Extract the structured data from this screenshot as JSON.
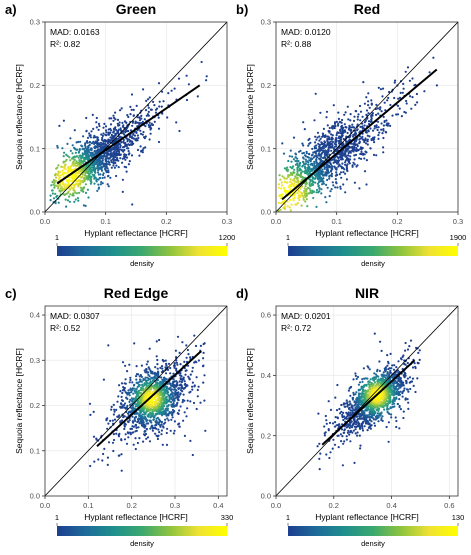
{
  "figure": {
    "colorbar_label": "density",
    "fit_color": "#000000",
    "identity_color": "#000000",
    "point_color": "#1f5f99",
    "colormap": [
      "#1d3f8f",
      "#1e6b9a",
      "#1f8f8c",
      "#3ba86f",
      "#8fc43e",
      "#f0e233",
      "#ffff00"
    ]
  },
  "chart_data": [
    {
      "type": "scatter",
      "panel_letter": "a)",
      "title": "Green",
      "xlabel": "Hyplant reflectance [HCRF]",
      "ylabel": "Sequoia reflectance [HCRF]",
      "xlim": [
        0.0,
        0.3
      ],
      "ylim": [
        0.0,
        0.3
      ],
      "xticks": [
        "0.0",
        "0.1",
        "0.2",
        "0.3"
      ],
      "yticks": [
        "0.0",
        "0.1",
        "0.2",
        "0.3"
      ],
      "xtick_values": [
        0.0,
        0.1,
        0.2,
        0.3
      ],
      "ytick_values": [
        0.0,
        0.1,
        0.2,
        0.3
      ],
      "stats": [
        "MAD: 0.0163",
        "R²: 0.82"
      ],
      "fit_line": {
        "x": [
          0.02,
          0.255
        ],
        "y": [
          0.045,
          0.2
        ]
      },
      "identity_line": true,
      "cloud": {
        "center": [
          0.085,
          0.085
        ],
        "direction": [
          1.0,
          0.72
        ],
        "spread_along": 0.045,
        "spread_across": 0.015,
        "range_along": [
          0.01,
          0.28
        ],
        "hotspot": [
          0.04,
          0.055
        ]
      },
      "colorbar": {
        "min": "1",
        "max": "1200"
      },
      "grid": true
    },
    {
      "type": "scatter",
      "panel_letter": "b)",
      "title": "Red",
      "xlabel": "Hyplant reflectance [HCRF]",
      "ylabel": "Sequoia reflectance [HCRF]",
      "xlim": [
        0.0,
        0.3
      ],
      "ylim": [
        0.0,
        0.3
      ],
      "xticks": [
        "0.0",
        "0.1",
        "0.2",
        "0.3"
      ],
      "yticks": [
        "0.0",
        "0.1",
        "0.2",
        "0.3"
      ],
      "xtick_values": [
        0.0,
        0.1,
        0.2,
        0.3
      ],
      "ytick_values": [
        0.0,
        0.1,
        0.2,
        0.3
      ],
      "stats": [
        "MAD: 0.0120",
        "R²: 0.88"
      ],
      "fit_line": {
        "x": [
          0.01,
          0.265
        ],
        "y": [
          0.02,
          0.225
        ]
      },
      "identity_line": true,
      "cloud": {
        "center": [
          0.08,
          0.08
        ],
        "direction": [
          1.0,
          0.82
        ],
        "spread_along": 0.055,
        "spread_across": 0.018,
        "range_along": [
          0.005,
          0.28
        ],
        "hotspot": [
          0.02,
          0.028
        ]
      },
      "colorbar": {
        "min": "1",
        "max": "1900"
      },
      "grid": true
    },
    {
      "type": "scatter",
      "panel_letter": "c)",
      "title": "Red Edge",
      "xlabel": "Hyplant reflectance [HCRF]",
      "ylabel": "Sequoia reflectance [HCRF]",
      "xlim": [
        0.0,
        0.42
      ],
      "ylim": [
        0.0,
        0.42
      ],
      "xticks": [
        "0.0",
        "0.1",
        "0.2",
        "0.3",
        "0.4"
      ],
      "yticks": [
        "0.0",
        "0.1",
        "0.2",
        "0.3",
        "0.4"
      ],
      "xtick_values": [
        0.0,
        0.1,
        0.2,
        0.3,
        0.4
      ],
      "ytick_values": [
        0.0,
        0.1,
        0.2,
        0.3,
        0.4
      ],
      "stats": [
        "MAD: 0.0307",
        "R²: 0.52"
      ],
      "fit_line": {
        "x": [
          0.12,
          0.36
        ],
        "y": [
          0.11,
          0.32
        ]
      },
      "identity_line": true,
      "cloud": {
        "center": [
          0.25,
          0.215
        ],
        "direction": [
          1.0,
          0.85
        ],
        "spread_along": 0.04,
        "spread_across": 0.028,
        "range_along": [
          0.11,
          0.37
        ],
        "hotspot": [
          0.245,
          0.215
        ]
      },
      "colorbar": {
        "min": "1",
        "max": "330"
      },
      "grid": true
    },
    {
      "type": "scatter",
      "panel_letter": "d)",
      "title": "NIR",
      "xlabel": "Hyplant reflectance [HCRF]",
      "ylabel": "Sequoia reflectance [HCRF]",
      "xlim": [
        0.0,
        0.63
      ],
      "ylim": [
        0.0,
        0.63
      ],
      "xticks": [
        "0.0",
        "0.2",
        "0.4",
        "0.6"
      ],
      "yticks": [
        "0.0",
        "0.2",
        "0.4",
        "0.6"
      ],
      "xtick_values": [
        0.0,
        0.2,
        0.4,
        0.6
      ],
      "ytick_values": [
        0.0,
        0.2,
        0.4,
        0.6
      ],
      "stats": [
        "MAD: 0.0201",
        "R²: 0.72"
      ],
      "fit_line": {
        "x": [
          0.16,
          0.48
        ],
        "y": [
          0.17,
          0.45
        ]
      },
      "identity_line": true,
      "cloud": {
        "center": [
          0.34,
          0.32
        ],
        "direction": [
          1.0,
          0.9
        ],
        "spread_along": 0.06,
        "spread_across": 0.03,
        "range_along": [
          0.16,
          0.5
        ],
        "hotspot": [
          0.35,
          0.335
        ]
      },
      "colorbar": {
        "min": "1",
        "max": "130"
      },
      "grid": true
    }
  ]
}
